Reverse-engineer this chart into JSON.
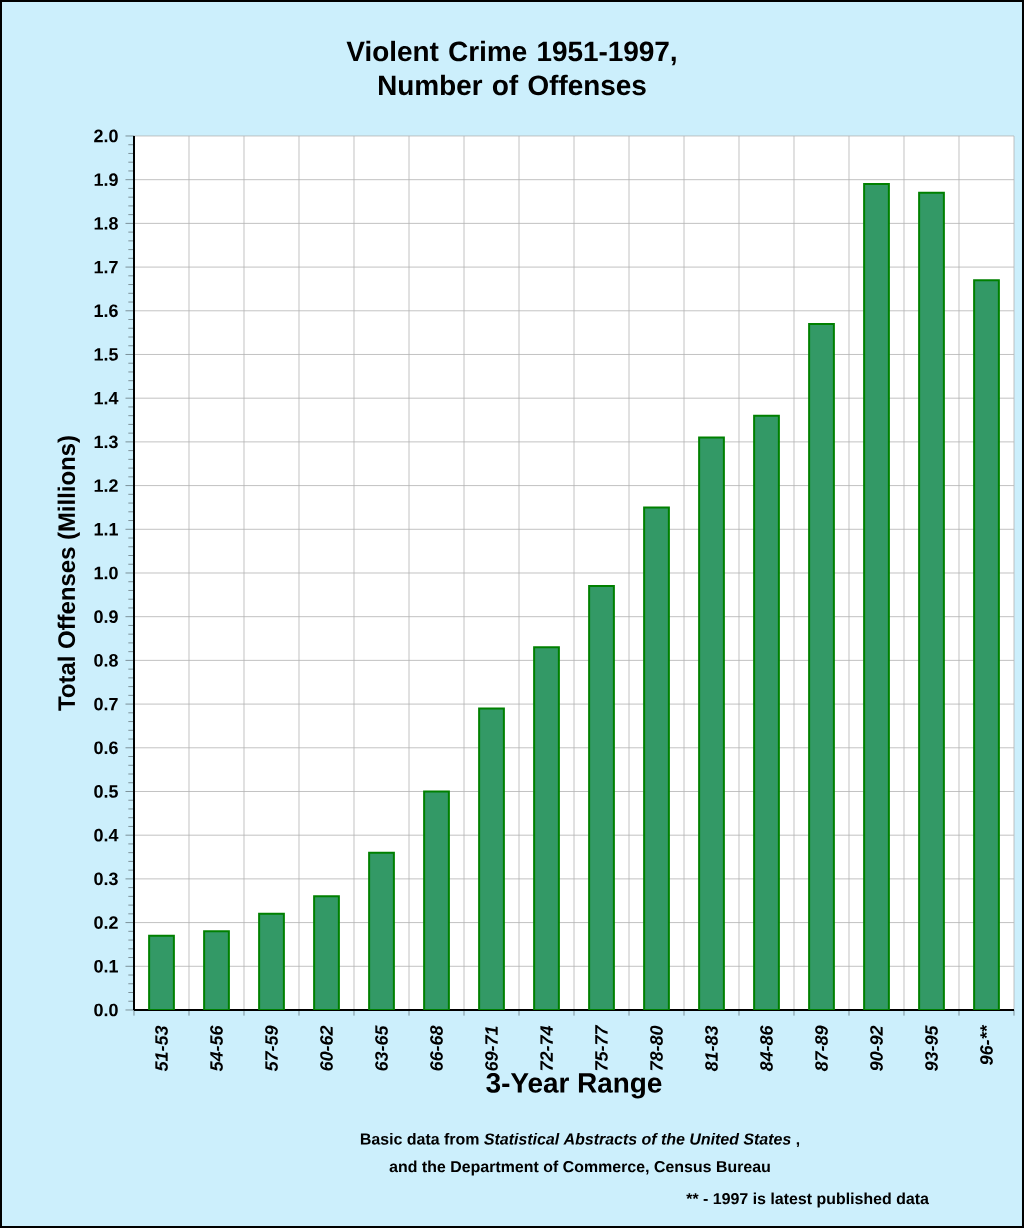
{
  "chart_data": {
    "type": "bar",
    "title": "Violent Crime 1951-1997, Number of Offenses",
    "xlabel": "3-Year Range",
    "ylabel": "Total Offenses (Millions)",
    "categories": [
      "51-53",
      "54-56",
      "57-59",
      "60-62",
      "63-65",
      "66-68",
      "69-71",
      "72-74",
      "75-77",
      "78-80",
      "81-83",
      "84-86",
      "87-89",
      "90-92",
      "93-95",
      "96-**"
    ],
    "values": [
      0.17,
      0.18,
      0.22,
      0.26,
      0.36,
      0.5,
      0.69,
      0.83,
      0.97,
      1.15,
      1.31,
      1.36,
      1.57,
      1.89,
      1.87,
      1.67
    ],
    "color": "#339966",
    "ylim": [
      0,
      2.0
    ],
    "yticks": [
      {
        "value": 0,
        "label": "0.0"
      },
      0.1,
      0.2,
      0.3,
      0.4,
      0.5,
      0.6,
      0.7,
      0.8,
      0.9,
      {
        "value": 1,
        "label": "1.0"
      },
      1.1,
      1.2,
      1.3,
      1.4,
      1.5,
      1.6,
      1.7,
      1.8,
      1.9,
      {
        "value": 2,
        "label": "2.0"
      }
    ],
    "grid": true,
    "annotations": [
      "Basic data from *Statistical Abstracts of the United States* ,",
      "and the Department of Commerce, Census Bureau",
      "** - 1997 is latest published data"
    ]
  }
}
